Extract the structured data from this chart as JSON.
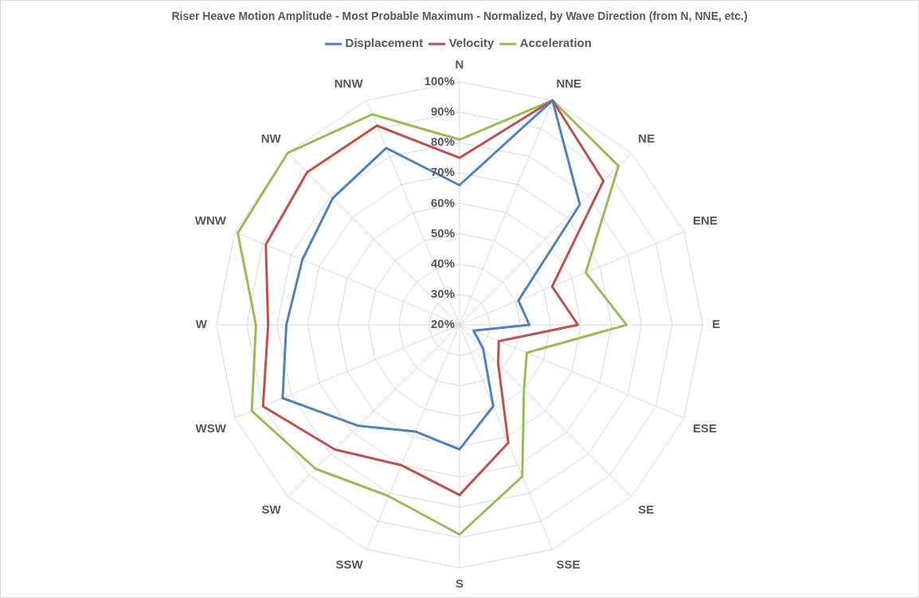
{
  "chart_data": {
    "type": "radar",
    "title": "Riser Heave Motion Amplitude - Most Probable Maximum - Normalized, by Wave Direction (from N, NNE, etc.)",
    "categories": [
      "N",
      "NNE",
      "NE",
      "ENE",
      "E",
      "ESE",
      "SE",
      "SSE",
      "S",
      "SSW",
      "SW",
      "WSW",
      "W",
      "WNW",
      "NW",
      "NNW"
    ],
    "series": [
      {
        "name": "Displacement",
        "color": "#4f81bd",
        "values": [
          66,
          100,
          76,
          41,
          43,
          25,
          31,
          49,
          61,
          58,
          67,
          83,
          77,
          76,
          79,
          83
        ]
      },
      {
        "name": "Velocity",
        "color": "#c0504d",
        "values": [
          75,
          100,
          87,
          53,
          59,
          34,
          38,
          62,
          76,
          70,
          78,
          90,
          83,
          89,
          91,
          91
        ]
      },
      {
        "name": "Acceleration",
        "color": "#9bbb59",
        "values": [
          81,
          100,
          94,
          65,
          75,
          44,
          50,
          74,
          89,
          81,
          87,
          94,
          87,
          99,
          100,
          95
        ]
      }
    ],
    "ylim": [
      20,
      100
    ],
    "yticks": [
      {
        "value": 20,
        "label": "20%"
      },
      {
        "value": 30,
        "label": "30%"
      },
      {
        "value": 40,
        "label": "40%"
      },
      {
        "value": 50,
        "label": "50%"
      },
      {
        "value": 60,
        "label": "60%"
      },
      {
        "value": 70,
        "label": "70%"
      },
      {
        "value": 80,
        "label": "80%"
      },
      {
        "value": 90,
        "label": "90%"
      },
      {
        "value": 100,
        "label": "100%"
      }
    ],
    "grid": true,
    "legend": "top",
    "marker": "none",
    "line_style": "solid"
  }
}
